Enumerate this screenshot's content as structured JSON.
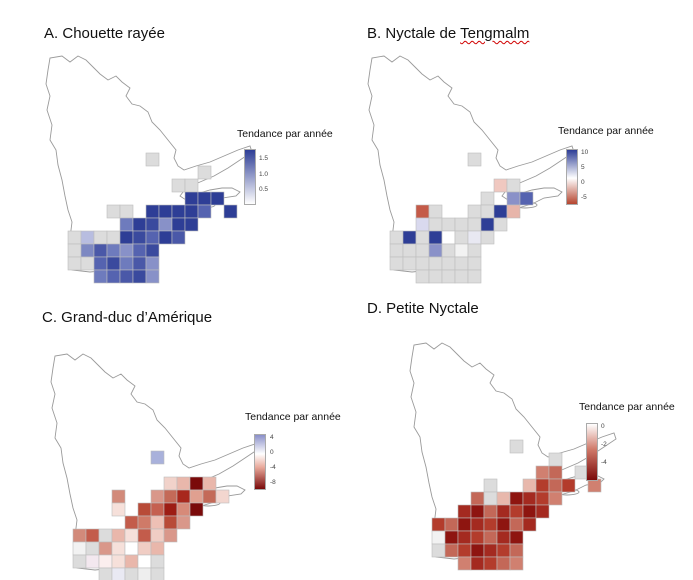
{
  "legend_title": "Tendance par année",
  "colors": {
    "blue": "#2e3e96",
    "white": "#ffffff",
    "red": "#7a0a0a",
    "grey": "#dcdcdc",
    "outline": "#9a9a9a"
  },
  "panels": [
    {
      "letter": "A.",
      "species": "Chouette rayée",
      "ticks": [
        "1.5",
        "1.0",
        "0.5"
      ],
      "scale": "white-blue"
    },
    {
      "letter": "B.",
      "species_a": "Nyctale de ",
      "species_b": "Tengmalm",
      "ticks": [
        "10",
        "5",
        "0",
        "-5"
      ],
      "scale": "red-white-blue"
    },
    {
      "letter": "C.",
      "species": "Grand-duc d’Amérique",
      "ticks": [
        "4",
        "0",
        "-4",
        "-8"
      ],
      "scale": "red-white-blue"
    },
    {
      "letter": "D.",
      "species": "Petite Nyctale",
      "ticks": [
        "0",
        "-2",
        "-4"
      ],
      "scale": "red-white"
    }
  ]
}
